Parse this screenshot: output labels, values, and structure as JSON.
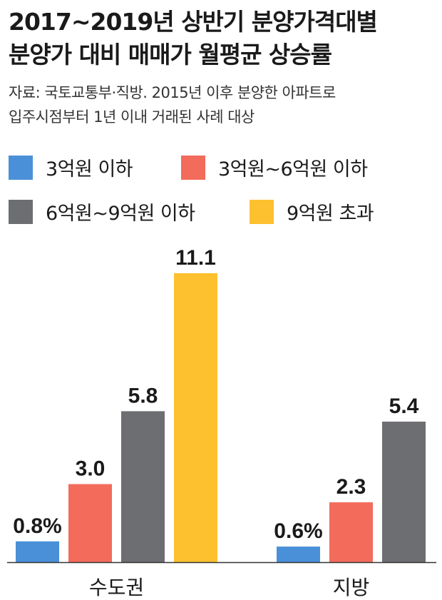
{
  "title": {
    "line1": "2017~2019년 상반기 분양가격대별",
    "line2": "분양가 대비 매매가 월평균 상승률"
  },
  "source": {
    "line1": "자료: 국토교통부·직방. 2015년 이후 분양한 아파트로",
    "line2": "입주시점부터 1년 이내 거래된 사례 대상"
  },
  "chart_data": {
    "type": "bar",
    "categories": [
      "수도권",
      "지방"
    ],
    "series": [
      {
        "name": "3억원 이하",
        "color": "#4a90d9",
        "values": [
          0.8,
          0.6
        ],
        "labels": [
          "0.8%",
          "0.6%"
        ]
      },
      {
        "name": "3억원~6억원 이하",
        "color": "#f26b5b",
        "values": [
          3.0,
          2.3
        ],
        "labels": [
          "3.0",
          "2.3"
        ]
      },
      {
        "name": "6억원~9억원 이하",
        "color": "#6d6e71",
        "values": [
          5.8,
          5.4
        ],
        "labels": [
          "5.8",
          "5.4"
        ]
      },
      {
        "name": "9억원 초과",
        "color": "#fdc02f",
        "values": [
          11.1,
          null
        ],
        "labels": [
          "11.1",
          null
        ]
      }
    ],
    "unit": "%",
    "ylim": [
      0,
      11.1
    ],
    "grid": false,
    "legend": "top"
  }
}
